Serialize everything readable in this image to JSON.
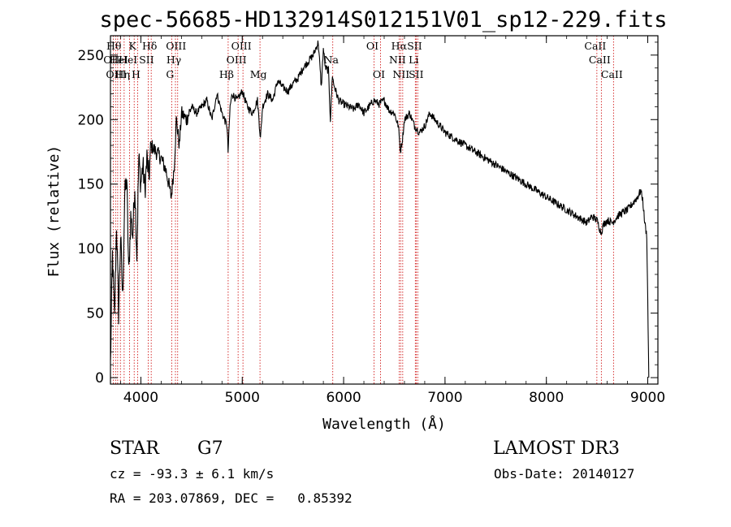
{
  "chart_data": {
    "type": "line",
    "title": "spec-56685-HD132914S012151V01_sp12-229.fits",
    "xlabel": "Wavelength (Å)",
    "ylabel": "Flux (relative)",
    "xlim": [
      3700,
      9100
    ],
    "ylim": [
      -5,
      265
    ],
    "xticks": [
      4000,
      5000,
      6000,
      7000,
      8000,
      9000
    ],
    "yticks": [
      0,
      50,
      100,
      150,
      200,
      250
    ],
    "grid": false,
    "series": [
      {
        "name": "flux",
        "x": [
          3700,
          3720,
          3740,
          3760,
          3780,
          3800,
          3820,
          3840,
          3860,
          3880,
          3900,
          3920,
          3940,
          3960,
          3980,
          4000,
          4020,
          4040,
          4060,
          4080,
          4100,
          4150,
          4200,
          4250,
          4300,
          4330,
          4350,
          4380,
          4400,
          4450,
          4500,
          4550,
          4600,
          4650,
          4700,
          4750,
          4800,
          4850,
          4860,
          4880,
          4900,
          4950,
          5000,
          5050,
          5100,
          5150,
          5180,
          5200,
          5250,
          5300,
          5350,
          5400,
          5450,
          5500,
          5550,
          5600,
          5650,
          5700,
          5750,
          5780,
          5800,
          5820,
          5850,
          5870,
          5890,
          5900,
          5950,
          6000,
          6050,
          6100,
          6150,
          6200,
          6250,
          6300,
          6350,
          6400,
          6450,
          6500,
          6540,
          6560,
          6580,
          6600,
          6650,
          6700,
          6750,
          6800,
          6850,
          6900,
          6950,
          7000,
          7100,
          7200,
          7300,
          7400,
          7500,
          7600,
          7700,
          7800,
          7900,
          8000,
          8100,
          8200,
          8300,
          8400,
          8450,
          8500,
          8540,
          8560,
          8600,
          8650,
          8700,
          8750,
          8800,
          8850,
          8900,
          8930,
          8950,
          8970,
          8990,
          9000,
          9010
        ],
        "values": [
          10,
          95,
          45,
          120,
          50,
          110,
          60,
          140,
          155,
          80,
          125,
          110,
          150,
          95,
          170,
          150,
          165,
          145,
          170,
          155,
          180,
          175,
          170,
          160,
          140,
          165,
          200,
          180,
          205,
          200,
          210,
          205,
          210,
          215,
          200,
          220,
          205,
          195,
          175,
          210,
          220,
          215,
          222,
          210,
          205,
          215,
          185,
          210,
          220,
          215,
          230,
          225,
          222,
          228,
          232,
          240,
          245,
          250,
          260,
          225,
          255,
          240,
          238,
          200,
          235,
          228,
          215,
          212,
          210,
          208,
          212,
          205,
          210,
          215,
          212,
          215,
          207,
          205,
          195,
          175,
          185,
          200,
          205,
          195,
          190,
          195,
          205,
          200,
          195,
          190,
          185,
          180,
          175,
          170,
          165,
          160,
          155,
          150,
          145,
          140,
          135,
          130,
          125,
          120,
          125,
          122,
          112,
          118,
          122,
          120,
          125,
          128,
          130,
          135,
          140,
          145,
          138,
          120,
          110,
          60,
          0
        ]
      }
    ],
    "line_markers": [
      {
        "wavelength": 3727,
        "row": 1,
        "label": "OII"
      },
      {
        "wavelength": 3750,
        "row": 0,
        "label": "Hθ"
      },
      {
        "wavelength": 3771,
        "row": 2,
        "label": "OIII"
      },
      {
        "wavelength": 3798,
        "row": 1,
        "label": "HeI"
      },
      {
        "wavelength": 3835,
        "row": 2,
        "label": "Hη"
      },
      {
        "wavelength": 3889,
        "row": 1,
        "label": "HeI"
      },
      {
        "wavelength": 3934,
        "row": 0,
        "label": "K"
      },
      {
        "wavelength": 3968,
        "row": 2,
        "label": "H"
      },
      {
        "wavelength": 4072,
        "row": 1,
        "label": "SII"
      },
      {
        "wavelength": 4102,
        "row": 0,
        "label": "Hδ"
      },
      {
        "wavelength": 4304,
        "row": 2,
        "label": "G"
      },
      {
        "wavelength": 4341,
        "row": 1,
        "label": "Hγ"
      },
      {
        "wavelength": 4363,
        "row": 0,
        "label": "OIII"
      },
      {
        "wavelength": 4861,
        "row": 2,
        "label": "Hβ"
      },
      {
        "wavelength": 4959,
        "row": 1,
        "label": "OIII"
      },
      {
        "wavelength": 5007,
        "row": 0,
        "label": "OIII"
      },
      {
        "wavelength": 5175,
        "row": 2,
        "label": "Mg"
      },
      {
        "wavelength": 5893,
        "row": 1,
        "label": "Na"
      },
      {
        "wavelength": 6300,
        "row": 0,
        "label": "OI"
      },
      {
        "wavelength": 6364,
        "row": 2,
        "label": "OI"
      },
      {
        "wavelength": 6548,
        "row": 1,
        "label": "NII"
      },
      {
        "wavelength": 6563,
        "row": 0,
        "label": "Hα"
      },
      {
        "wavelength": 6583,
        "row": 2,
        "label": "NII"
      },
      {
        "wavelength": 6707,
        "row": 1,
        "label": "Li"
      },
      {
        "wavelength": 6716,
        "row": 0,
        "label": "SII"
      },
      {
        "wavelength": 6731,
        "row": 2,
        "label": "SII"
      },
      {
        "wavelength": 8498,
        "row": 0,
        "label": "CaII"
      },
      {
        "wavelength": 8542,
        "row": 1,
        "label": "CaII"
      },
      {
        "wavelength": 8662,
        "row": 2,
        "label": "CaII"
      }
    ],
    "line_color": "#000000",
    "marker_color": "#cc0000"
  },
  "info": {
    "object_class": "STAR",
    "subclass": "G7",
    "survey": "LAMOST DR3",
    "cz_text": "cz = -93.3 ± 6.1 km/s",
    "obs_date_text": "Obs-Date: 20140127",
    "radec_text": "RA = 203.07869, DEC =   0.85392"
  }
}
